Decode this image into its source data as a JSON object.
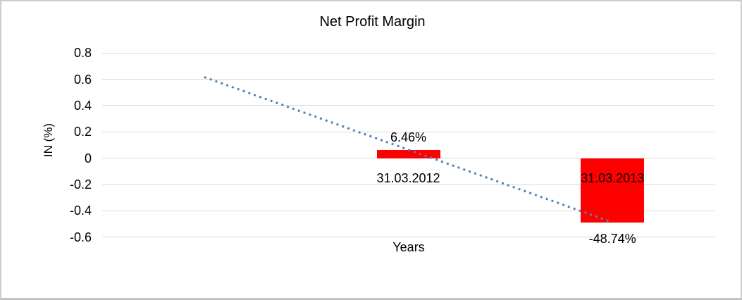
{
  "chart_data": {
    "type": "bar",
    "title": "Net Profit Margin",
    "xlabel": "Years",
    "ylabel": "IN (%)",
    "ylim": [
      -0.6,
      0.8
    ],
    "ytick_step": 0.2,
    "yticks": [
      0.8,
      0.6,
      0.4,
      0.2,
      0,
      -0.2,
      -0.4,
      -0.6
    ],
    "ytick_labels": [
      "0.8",
      "0.6",
      "0.4",
      "0.2",
      "0",
      "-0.2",
      "-0.4",
      "-0.6"
    ],
    "grid": true,
    "legend": false,
    "n_category_slots": 3,
    "categories": [
      "",
      "31.03.2012",
      "31.03.2013"
    ],
    "series": [
      {
        "name": "Net Profit Margin",
        "points": [
          {
            "slot": 1,
            "category": "31.03.2012",
            "value_percent": 6.46,
            "value_axis": 0.0646,
            "data_label": "6.46%"
          },
          {
            "slot": 2,
            "category": "31.03.2013",
            "value_percent": -48.74,
            "value_axis": -0.4874,
            "data_label": "-48.74%"
          }
        ]
      }
    ],
    "trendline": {
      "style": "dotted",
      "color": "#4f81bd",
      "start": {
        "slot": 0,
        "value_axis": 0.617
      },
      "end": {
        "slot": 2,
        "value_axis": -0.4874
      }
    },
    "colors": {
      "bar": "#ff0000",
      "gridline": "#d9d9d9",
      "text": "#000000",
      "frame_border": "#cccccc",
      "background": "#ffffff"
    }
  }
}
